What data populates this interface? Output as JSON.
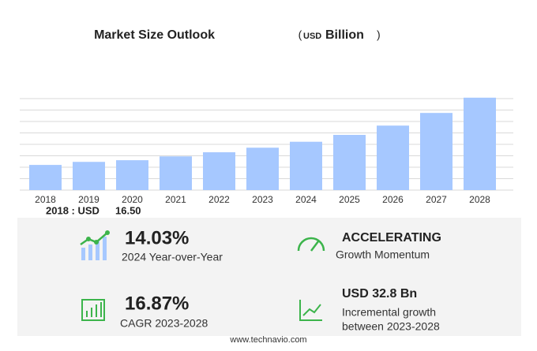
{
  "chart_data": {
    "type": "bar",
    "title": "Market Size Outlook",
    "unit_open": "(",
    "unit_prefix": "USD",
    "unit": "Billion",
    "unit_close": ")",
    "categories": [
      "2018",
      "2019",
      "2020",
      "2021",
      "2022",
      "2023",
      "2024",
      "2025",
      "2026",
      "2027",
      "2028"
    ],
    "values": [
      16.5,
      18.5,
      19.6,
      22.1,
      24.8,
      27.8,
      31.7,
      36.2,
      42.3,
      50.6,
      60.6
    ],
    "color": "#a6c8ff",
    "ylim": [
      0,
      60
    ],
    "yticks": [
      0,
      7.5,
      15,
      22.5,
      30,
      37.5,
      45,
      52.5,
      60
    ],
    "grid": true,
    "base_label": "2018 : USD",
    "base_value": "16.50"
  },
  "stats": [
    {
      "value": "14.03%",
      "label": "2024 Year-over-Year"
    },
    {
      "value": "ACCELERATING",
      "label": "Growth Momentum"
    },
    {
      "value": "16.87%",
      "label": "CAGR 2023-2028"
    },
    {
      "value": "USD 32.8 Bn",
      "label": "Incremental growth",
      "label2": "between 2023-2028"
    }
  ],
  "footer": "www.technavio.com"
}
